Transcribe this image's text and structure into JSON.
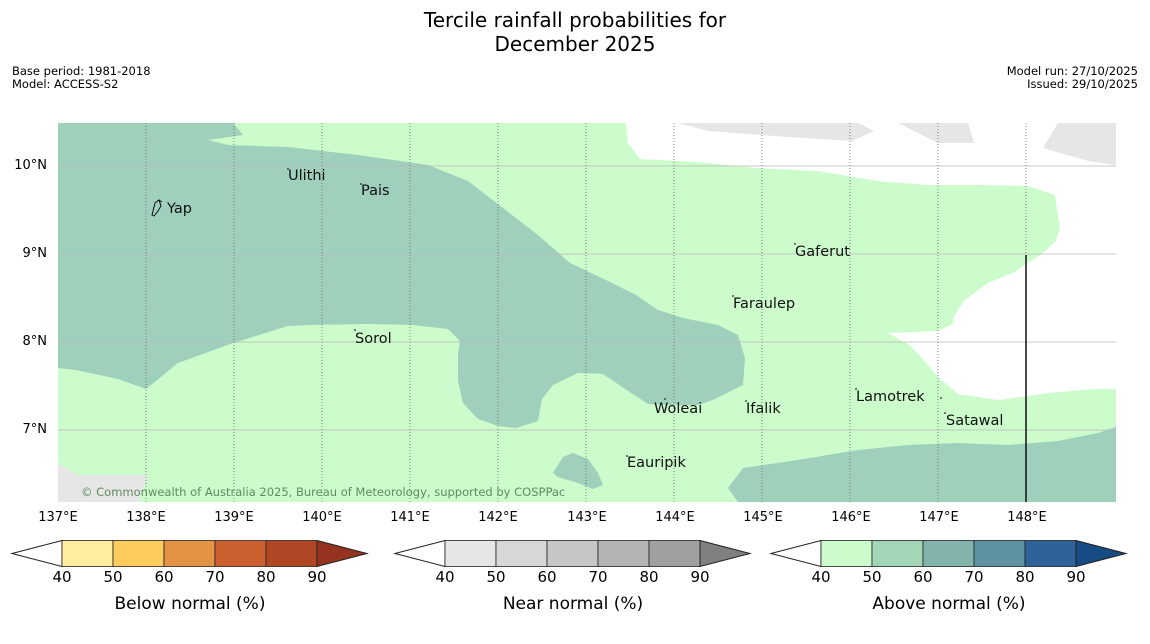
{
  "title": {
    "line1": "Tercile rainfall probabilities for",
    "line2": "December 2025"
  },
  "meta_left": {
    "base_period": "Base period: 1981-2018",
    "model": "Model: ACCESS-S2"
  },
  "meta_right": {
    "model_run": "Model run: 27/10/2025",
    "issued": "Issued: 29/10/2025"
  },
  "map": {
    "colors": {
      "above_normal_50_60": "#ccfccc",
      "above_normal_60_70": "#9fd0bb",
      "near_normal_40_50": "#e6e6e6",
      "no_dominant": "#ffffff"
    },
    "lat_labels": [
      "10°N",
      "9°N",
      "8°N",
      "7°N"
    ],
    "lon_labels": [
      "137°E",
      "138°E",
      "139°E",
      "140°E",
      "141°E",
      "142°E",
      "143°E",
      "144°E",
      "145°E",
      "146°E",
      "147°E",
      "148°E"
    ],
    "places": [
      "Ulithi",
      "Pais",
      "Yap",
      "Gaferut",
      "Faraulep",
      "Sorol",
      "Lamotrek",
      "Woleai",
      "Ifalik",
      "Satawal",
      "Eauripik"
    ],
    "copyright": "© Commonwealth of Australia 2025, Bureau of Meteorology, supported by COSPPac"
  },
  "legend": {
    "below": {
      "title": "Below normal (%)",
      "ticks": [
        "40",
        "50",
        "60",
        "70",
        "80",
        "90"
      ],
      "colors": [
        "#ffffff",
        "#ffeda0",
        "#fecc5c",
        "#e39343",
        "#cd6030",
        "#b04623",
        "#963220"
      ]
    },
    "near": {
      "title": "Near normal (%)",
      "ticks": [
        "40",
        "50",
        "60",
        "70",
        "80",
        "90"
      ],
      "colors": [
        "#ffffff",
        "#e6e6e6",
        "#d7d7d7",
        "#c6c6c6",
        "#b3b3b3",
        "#a0a0a0",
        "#808080"
      ]
    },
    "above": {
      "title": "Above normal (%)",
      "ticks": [
        "40",
        "50",
        "60",
        "70",
        "80",
        "90"
      ],
      "colors": [
        "#ffffff",
        "#ccfccc",
        "#a2d6b6",
        "#82b4ac",
        "#5d92a3",
        "#2e6299",
        "#164b83"
      ]
    }
  }
}
